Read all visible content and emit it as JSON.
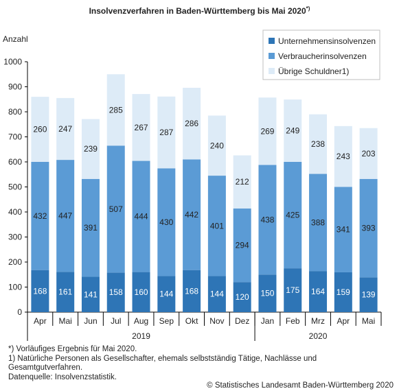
{
  "title": "Insolvenzverfahren in Baden-Württemberg bis Mai 2020",
  "title_sup": "*)",
  "yunit": "Anzahl",
  "footnotes": [
    "*) Vorläufiges Ergebnis für Mai 2020.",
    "1) Natürliche Personen als Gesellschafter, ehemals selbstständig Tätige, Nachlässe und Gesamtgutverfahren.",
    "Datenquelle: Insolvenzstatistik."
  ],
  "source": "© Statistisches Landesamt Baden-Württemberg 2020",
  "chart_data": {
    "type": "bar",
    "stacked": true,
    "categories": [
      "Apr",
      "Mai",
      "Jun",
      "Jul",
      "Aug",
      "Sep",
      "Okt",
      "Nov",
      "Dez",
      "Jan",
      "Feb",
      "Mrz",
      "Apr",
      "Mai"
    ],
    "groups": [
      {
        "label": "2019",
        "count": 9
      },
      {
        "label": "2020",
        "count": 5
      }
    ],
    "series": [
      {
        "name": "Unternehmensinsolvenzen",
        "color": "#2e75b6",
        "values": [
          168,
          161,
          141,
          158,
          160,
          144,
          168,
          144,
          120,
          150,
          175,
          164,
          159,
          139
        ]
      },
      {
        "name": "Verbraucherinsolvenzen",
        "color": "#5b9bd5",
        "values": [
          432,
          447,
          391,
          507,
          444,
          430,
          442,
          401,
          294,
          438,
          425,
          388,
          341,
          393
        ]
      },
      {
        "name": "Übrige Schuldner1)",
        "color": "#ddebf7",
        "values": [
          260,
          247,
          239,
          285,
          267,
          287,
          286,
          240,
          212,
          269,
          249,
          238,
          243,
          203
        ]
      }
    ],
    "ylim": [
      0,
      1000
    ],
    "yticks": [
      0,
      100,
      200,
      300,
      400,
      500,
      600,
      700,
      800,
      900,
      1000
    ],
    "legend": "top-right",
    "grid": false
  }
}
